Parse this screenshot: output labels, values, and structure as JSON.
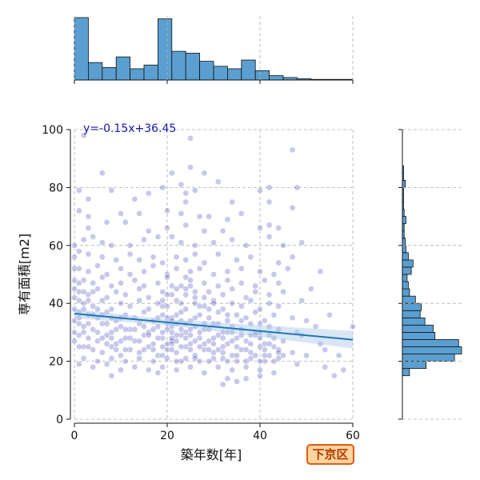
{
  "chart_data": {
    "type": "scatter",
    "title": "",
    "xlabel": "築年数[年]",
    "ylabel": "専有面積[m2]",
    "xlim": [
      0,
      60
    ],
    "ylim": [
      0,
      100
    ],
    "x_ticks": [
      0,
      20,
      40,
      60
    ],
    "y_ticks": [
      0,
      20,
      40,
      60,
      80,
      100
    ],
    "grid": true,
    "regression": {
      "equation": "y=-0.15x+36.45",
      "slope": -0.15,
      "intercept": 36.45
    },
    "region_label": "下京区",
    "colors": {
      "points": "#3a3ab8",
      "line": "#1f77b4",
      "band": "#a8c8e8",
      "hist": "#5a9fd0",
      "badge_bg": "#ffd59e",
      "badge_border": "#e05a12"
    },
    "x_histogram": {
      "bin_width": 3,
      "bins": [
        0,
        3,
        6,
        9,
        12,
        15,
        18,
        21,
        24,
        27,
        30,
        33,
        36,
        39,
        42,
        45,
        48,
        51,
        54,
        57
      ],
      "counts": [
        100,
        28,
        20,
        37,
        18,
        24,
        98,
        46,
        43,
        30,
        22,
        18,
        32,
        15,
        7,
        4,
        2,
        1,
        1,
        1
      ]
    },
    "y_histogram": {
      "bin_width": 2.5,
      "bins": [
        15,
        17.5,
        20,
        22.5,
        25,
        27.5,
        30,
        32.5,
        35,
        37.5,
        40,
        42.5,
        45,
        47.5,
        50,
        52.5,
        55,
        57.5,
        60,
        62.5,
        65,
        67.5,
        70,
        72.5,
        75,
        77.5,
        80,
        82.5,
        85
      ],
      "counts": [
        12,
        40,
        88,
        100,
        95,
        55,
        52,
        38,
        30,
        32,
        22,
        12,
        10,
        8,
        15,
        18,
        10,
        6,
        5,
        3,
        3,
        6,
        3,
        2,
        2,
        2,
        5,
        2,
        2
      ]
    },
    "points": [
      [
        2,
        98
      ],
      [
        25,
        97
      ],
      [
        47,
        93
      ],
      [
        6,
        85
      ],
      [
        21,
        85
      ],
      [
        25,
        87
      ],
      [
        28,
        85
      ],
      [
        1,
        79
      ],
      [
        8,
        79
      ],
      [
        19,
        80
      ],
      [
        23,
        81
      ],
      [
        26,
        79
      ],
      [
        31,
        82
      ],
      [
        40,
        79
      ],
      [
        42,
        80
      ],
      [
        48,
        80
      ],
      [
        3,
        76
      ],
      [
        13,
        76
      ],
      [
        16,
        78
      ],
      [
        24,
        78
      ],
      [
        24,
        75
      ],
      [
        34,
        75
      ],
      [
        42,
        75
      ],
      [
        47,
        73
      ],
      [
        1,
        72
      ],
      [
        3,
        70
      ],
      [
        10,
        71
      ],
      [
        14,
        71
      ],
      [
        20,
        72
      ],
      [
        23,
        71
      ],
      [
        27,
        70
      ],
      [
        29,
        70
      ],
      [
        33,
        69
      ],
      [
        36,
        71
      ],
      [
        42,
        67
      ],
      [
        3,
        66
      ],
      [
        7,
        68
      ],
      [
        11,
        68
      ],
      [
        16,
        65
      ],
      [
        20,
        66
      ],
      [
        24,
        67
      ],
      [
        28,
        65
      ],
      [
        32,
        65
      ],
      [
        40,
        66
      ],
      [
        44,
        66
      ],
      [
        2,
        62
      ],
      [
        4,
        63
      ],
      [
        6,
        61
      ],
      [
        8,
        60
      ],
      [
        12,
        60
      ],
      [
        15,
        62
      ],
      [
        18,
        63
      ],
      [
        21,
        63
      ],
      [
        23,
        61
      ],
      [
        26,
        60
      ],
      [
        30,
        61
      ],
      [
        34,
        62
      ],
      [
        37,
        60
      ],
      [
        42,
        63
      ],
      [
        45,
        60
      ],
      [
        49,
        61
      ],
      [
        1,
        58
      ],
      [
        3,
        57
      ],
      [
        6,
        56
      ],
      [
        9,
        55
      ],
      [
        12,
        57
      ],
      [
        14,
        55
      ],
      [
        17,
        56
      ],
      [
        19,
        54
      ],
      [
        22,
        56
      ],
      [
        24,
        55
      ],
      [
        26,
        57
      ],
      [
        28,
        54
      ],
      [
        31,
        57
      ],
      [
        35,
        55
      ],
      [
        38,
        56
      ],
      [
        44,
        54
      ],
      [
        47,
        56
      ],
      [
        1,
        52
      ],
      [
        3,
        51
      ],
      [
        5,
        53
      ],
      [
        7,
        50
      ],
      [
        10,
        52
      ],
      [
        12,
        50
      ],
      [
        15,
        51
      ],
      [
        17,
        53
      ],
      [
        20,
        50
      ],
      [
        22,
        52
      ],
      [
        25,
        51
      ],
      [
        27,
        52
      ],
      [
        30,
        50
      ],
      [
        33,
        51
      ],
      [
        36,
        52
      ],
      [
        40,
        51
      ],
      [
        43,
        50
      ],
      [
        46,
        52
      ],
      [
        53,
        51
      ],
      [
        2,
        48
      ],
      [
        4,
        47
      ],
      [
        6,
        49
      ],
      [
        8,
        46
      ],
      [
        10,
        47
      ],
      [
        13,
        48
      ],
      [
        15,
        46
      ],
      [
        18,
        47
      ],
      [
        20,
        49
      ],
      [
        23,
        46
      ],
      [
        25,
        48
      ],
      [
        28,
        47
      ],
      [
        31,
        46
      ],
      [
        33,
        48
      ],
      [
        36,
        47
      ],
      [
        39,
        46
      ],
      [
        41,
        48
      ],
      [
        44,
        47
      ],
      [
        51,
        45
      ],
      [
        1,
        44
      ],
      [
        3,
        43
      ],
      [
        5,
        45
      ],
      [
        7,
        42
      ],
      [
        9,
        44
      ],
      [
        11,
        43
      ],
      [
        14,
        45
      ],
      [
        16,
        42
      ],
      [
        19,
        44
      ],
      [
        21,
        43
      ],
      [
        24,
        45
      ],
      [
        26,
        42
      ],
      [
        29,
        44
      ],
      [
        32,
        43
      ],
      [
        34,
        45
      ],
      [
        37,
        42
      ],
      [
        39,
        44
      ],
      [
        42,
        43
      ],
      [
        45,
        44
      ],
      [
        1,
        41
      ],
      [
        2,
        40
      ],
      [
        4,
        39
      ],
      [
        6,
        41
      ],
      [
        8,
        38
      ],
      [
        10,
        40
      ],
      [
        12,
        39
      ],
      [
        14,
        41
      ],
      [
        16,
        38
      ],
      [
        18,
        40
      ],
      [
        20,
        39
      ],
      [
        22,
        41
      ],
      [
        24,
        38
      ],
      [
        26,
        40
      ],
      [
        28,
        39
      ],
      [
        30,
        41
      ],
      [
        32,
        38
      ],
      [
        34,
        40
      ],
      [
        36,
        39
      ],
      [
        38,
        41
      ],
      [
        40,
        38
      ],
      [
        42,
        40
      ],
      [
        44,
        39
      ],
      [
        49,
        41
      ],
      [
        1,
        37
      ],
      [
        3,
        36
      ],
      [
        5,
        35
      ],
      [
        7,
        37
      ],
      [
        9,
        34
      ],
      [
        11,
        36
      ],
      [
        13,
        35
      ],
      [
        15,
        37
      ],
      [
        17,
        34
      ],
      [
        19,
        36
      ],
      [
        21,
        35
      ],
      [
        23,
        37
      ],
      [
        25,
        34
      ],
      [
        27,
        36
      ],
      [
        29,
        35
      ],
      [
        31,
        37
      ],
      [
        33,
        34
      ],
      [
        35,
        36
      ],
      [
        37,
        35
      ],
      [
        39,
        37
      ],
      [
        41,
        34
      ],
      [
        43,
        36
      ],
      [
        47,
        35
      ],
      [
        50,
        34
      ],
      [
        55,
        36
      ],
      [
        60,
        32
      ],
      [
        1,
        33
      ],
      [
        2,
        32
      ],
      [
        4,
        31
      ],
      [
        6,
        33
      ],
      [
        8,
        30
      ],
      [
        10,
        32
      ],
      [
        12,
        31
      ],
      [
        14,
        33
      ],
      [
        16,
        30
      ],
      [
        18,
        32
      ],
      [
        20,
        31
      ],
      [
        22,
        33
      ],
      [
        24,
        30
      ],
      [
        26,
        32
      ],
      [
        28,
        31
      ],
      [
        30,
        33
      ],
      [
        32,
        30
      ],
      [
        34,
        32
      ],
      [
        36,
        31
      ],
      [
        38,
        33
      ],
      [
        40,
        30
      ],
      [
        42,
        32
      ],
      [
        44,
        31
      ],
      [
        48,
        30
      ],
      [
        52,
        32
      ],
      [
        1,
        29
      ],
      [
        3,
        28
      ],
      [
        5,
        27
      ],
      [
        7,
        29
      ],
      [
        9,
        26
      ],
      [
        11,
        28
      ],
      [
        13,
        27
      ],
      [
        15,
        29
      ],
      [
        17,
        26
      ],
      [
        19,
        28
      ],
      [
        21,
        27
      ],
      [
        23,
        29
      ],
      [
        25,
        26
      ],
      [
        27,
        28
      ],
      [
        29,
        27
      ],
      [
        31,
        29
      ],
      [
        33,
        26
      ],
      [
        35,
        28
      ],
      [
        37,
        27
      ],
      [
        39,
        29
      ],
      [
        41,
        26
      ],
      [
        43,
        28
      ],
      [
        45,
        27
      ],
      [
        49,
        29
      ],
      [
        53,
        26
      ],
      [
        2,
        25
      ],
      [
        4,
        24
      ],
      [
        6,
        23
      ],
      [
        8,
        25
      ],
      [
        10,
        22
      ],
      [
        12,
        24
      ],
      [
        14,
        23
      ],
      [
        16,
        25
      ],
      [
        18,
        22
      ],
      [
        20,
        24
      ],
      [
        22,
        23
      ],
      [
        24,
        25
      ],
      [
        26,
        22
      ],
      [
        28,
        24
      ],
      [
        30,
        23
      ],
      [
        32,
        25
      ],
      [
        34,
        22
      ],
      [
        36,
        24
      ],
      [
        38,
        23
      ],
      [
        40,
        25
      ],
      [
        42,
        22
      ],
      [
        44,
        24
      ],
      [
        47,
        23
      ],
      [
        50,
        22
      ],
      [
        54,
        24
      ],
      [
        57,
        22
      ],
      [
        2,
        21
      ],
      [
        5,
        20
      ],
      [
        8,
        21
      ],
      [
        11,
        20
      ],
      [
        14,
        21
      ],
      [
        17,
        20
      ],
      [
        20,
        21
      ],
      [
        23,
        20
      ],
      [
        26,
        21
      ],
      [
        29,
        20
      ],
      [
        32,
        21
      ],
      [
        35,
        20
      ],
      [
        38,
        21
      ],
      [
        41,
        20
      ],
      [
        44,
        21
      ],
      [
        48,
        19
      ],
      [
        1,
        19
      ],
      [
        4,
        18
      ],
      [
        7,
        19
      ],
      [
        10,
        17
      ],
      [
        13,
        18
      ],
      [
        16,
        17
      ],
      [
        19,
        18
      ],
      [
        22,
        17
      ],
      [
        25,
        18
      ],
      [
        28,
        16
      ],
      [
        31,
        18
      ],
      [
        34,
        17
      ],
      [
        37,
        18
      ],
      [
        40,
        17
      ],
      [
        43,
        16
      ],
      [
        8,
        15
      ],
      [
        18,
        16
      ],
      [
        33,
        14
      ],
      [
        37,
        14
      ],
      [
        40,
        15
      ],
      [
        32,
        12
      ],
      [
        35,
        13
      ],
      [
        54,
        18
      ],
      [
        56,
        15
      ],
      [
        58,
        17
      ],
      [
        21,
        28
      ],
      [
        21,
        30
      ],
      [
        21,
        32
      ],
      [
        21,
        34
      ],
      [
        21,
        26
      ],
      [
        19,
        30
      ],
      [
        19,
        25
      ],
      [
        20,
        35
      ],
      [
        22,
        29
      ],
      [
        22,
        27
      ],
      [
        23,
        31
      ],
      [
        24,
        28
      ],
      [
        25,
        31
      ],
      [
        26,
        27
      ],
      [
        27,
        30
      ],
      [
        28,
        26
      ],
      [
        29,
        31
      ],
      [
        30,
        26
      ],
      [
        31,
        24
      ],
      [
        32,
        28
      ],
      [
        33,
        30
      ],
      [
        34,
        27
      ],
      [
        35,
        25
      ],
      [
        36,
        29
      ],
      [
        37,
        24
      ],
      [
        38,
        26
      ],
      [
        39,
        30
      ],
      [
        40,
        28
      ],
      [
        41,
        24
      ],
      [
        42,
        29
      ],
      [
        43,
        25
      ],
      [
        0,
        34
      ],
      [
        0,
        30
      ],
      [
        0,
        38
      ],
      [
        0,
        45
      ],
      [
        0,
        52
      ],
      [
        0,
        27
      ],
      [
        0,
        42
      ],
      [
        0,
        60
      ],
      [
        0,
        56
      ],
      [
        0,
        48
      ],
      [
        1,
        35
      ],
      [
        1,
        25
      ],
      [
        1,
        47
      ],
      [
        2,
        38
      ],
      [
        2,
        44
      ],
      [
        2,
        30
      ],
      [
        3,
        41
      ],
      [
        3,
        33
      ],
      [
        3,
        25
      ],
      [
        4,
        44
      ],
      [
        4,
        36
      ],
      [
        5,
        38
      ],
      [
        5,
        30
      ],
      [
        6,
        36
      ],
      [
        6,
        28
      ],
      [
        7,
        33
      ],
      [
        7,
        26
      ],
      [
        8,
        35
      ],
      [
        8,
        28
      ],
      [
        9,
        31
      ],
      [
        9,
        24
      ],
      [
        10,
        35
      ],
      [
        10,
        27
      ],
      [
        11,
        31
      ],
      [
        11,
        24
      ],
      [
        12,
        28
      ],
      [
        13,
        31
      ],
      [
        14,
        27
      ],
      [
        15,
        32
      ],
      [
        15,
        24
      ],
      [
        16,
        29
      ],
      [
        17,
        31
      ],
      [
        17,
        24
      ],
      [
        18,
        28
      ],
      [
        18,
        35
      ],
      [
        19,
        22
      ],
      [
        20,
        26
      ],
      [
        20,
        33
      ],
      [
        21,
        24
      ],
      [
        22,
        36
      ],
      [
        22,
        20
      ],
      [
        23,
        25
      ],
      [
        23,
        34
      ],
      [
        24,
        33
      ],
      [
        24,
        21
      ],
      [
        25,
        24
      ],
      [
        25,
        29
      ],
      [
        26,
        35
      ],
      [
        27,
        25
      ],
      [
        27,
        20
      ],
      [
        28,
        33
      ],
      [
        29,
        24
      ],
      [
        30,
        28
      ],
      [
        30,
        21
      ],
      [
        31,
        33
      ],
      [
        32,
        23
      ],
      [
        33,
        20
      ],
      [
        33,
        36
      ],
      [
        34,
        30
      ],
      [
        35,
        22
      ],
      [
        36,
        34
      ],
      [
        37,
        20
      ],
      [
        38,
        29
      ],
      [
        39,
        22
      ],
      [
        40,
        20
      ],
      [
        40,
        33
      ],
      [
        41,
        22
      ],
      [
        42,
        26
      ],
      [
        43,
        20
      ],
      [
        44,
        23
      ],
      [
        45,
        22
      ],
      [
        19,
        39
      ],
      [
        19,
        41
      ],
      [
        20,
        43
      ],
      [
        21,
        46
      ],
      [
        22,
        45
      ],
      [
        23,
        40
      ],
      [
        24,
        43
      ],
      [
        25,
        46
      ],
      [
        24,
        49
      ],
      [
        26,
        44
      ],
      [
        27,
        39
      ],
      [
        28,
        42
      ],
      [
        29,
        38
      ],
      [
        30,
        40
      ]
    ]
  }
}
